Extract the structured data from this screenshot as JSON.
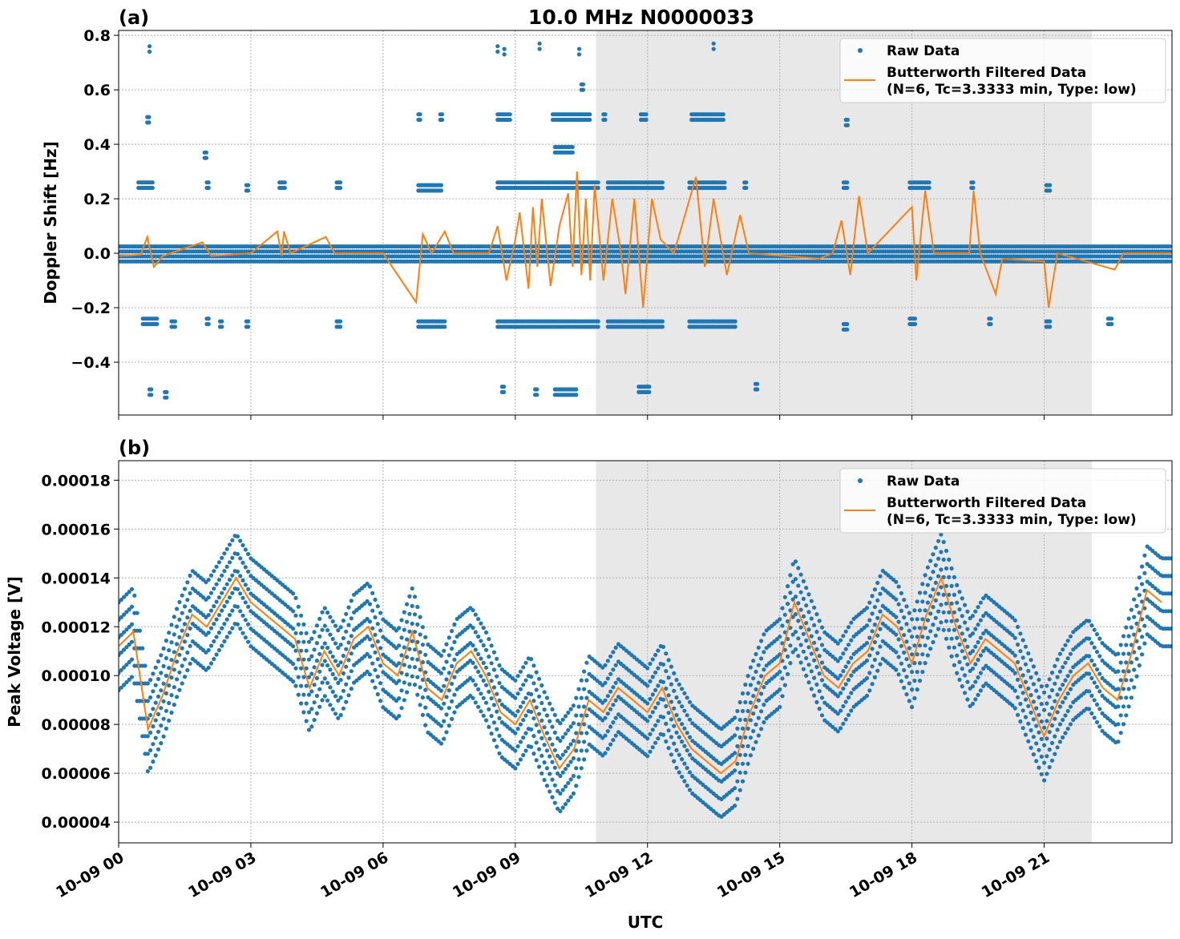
{
  "title": "10.0 MHz N0000033",
  "colors": {
    "raw": "#1f77b4",
    "filtered": "#ff7f0e",
    "shade": "#e8e8e8",
    "grid": "#b0b0b0"
  },
  "chart_data": [
    {
      "type": "scatter+line",
      "panel_label": "(a)",
      "ylabel": "Doppler Shift [Hz]",
      "xlabel": "",
      "x_unit": "hours UTC since 10-09 00:00",
      "xlim": [
        0,
        23.9
      ],
      "ylim": [
        -0.594,
        0.818
      ],
      "yticks": [
        -0.4,
        -0.2,
        0.0,
        0.2,
        0.4,
        0.6,
        0.8
      ],
      "ytick_labels": [
        "−0.4",
        "−0.2",
        "0.0",
        "0.2",
        "0.4",
        "0.6",
        "0.8"
      ],
      "grid": true,
      "shaded_interval": [
        10.83,
        22.08
      ],
      "legend": {
        "placement": "top-right",
        "entries": [
          "Raw Data",
          "Butterworth Filtered Data",
          "(N=6, Tc=3.3333 min, Type: low)"
        ]
      },
      "raw_band": [
        -0.03,
        0.025
      ],
      "raw_clusters": [
        [
          0.45,
          0.8,
          0.25
        ],
        [
          0.55,
          0.9,
          -0.25
        ],
        [
          1.2,
          1.3,
          -0.26
        ],
        [
          2.0,
          2.05,
          0.25
        ],
        [
          2.0,
          2.05,
          -0.25
        ],
        [
          2.3,
          2.35,
          -0.26
        ],
        [
          2.9,
          2.95,
          0.24
        ],
        [
          2.9,
          2.95,
          -0.26
        ],
        [
          3.65,
          3.8,
          0.25
        ],
        [
          4.95,
          5.05,
          0.25
        ],
        [
          4.95,
          5.05,
          -0.26
        ],
        [
          6.8,
          7.35,
          0.24
        ],
        [
          6.8,
          7.4,
          -0.26
        ],
        [
          8.6,
          10.9,
          0.25
        ],
        [
          8.6,
          10.9,
          -0.26
        ],
        [
          11.1,
          12.35,
          0.25
        ],
        [
          11.1,
          12.35,
          -0.26
        ],
        [
          12.95,
          13.75,
          0.25
        ],
        [
          12.95,
          14.0,
          -0.26
        ],
        [
          14.2,
          14.25,
          0.25
        ],
        [
          16.45,
          16.55,
          0.25
        ],
        [
          16.45,
          16.55,
          -0.27
        ],
        [
          17.95,
          18.4,
          0.25
        ],
        [
          17.95,
          18.1,
          -0.25
        ],
        [
          19.35,
          19.4,
          0.25
        ],
        [
          19.75,
          19.8,
          -0.25
        ],
        [
          21.05,
          21.15,
          0.24
        ],
        [
          21.05,
          21.15,
          -0.26
        ],
        [
          22.45,
          22.55,
          -0.25
        ],
        [
          0.65,
          0.7,
          0.49
        ],
        [
          6.8,
          6.85,
          0.5
        ],
        [
          7.3,
          7.35,
          0.5
        ],
        [
          8.6,
          8.9,
          0.5
        ],
        [
          9.85,
          10.7,
          0.5
        ],
        [
          11.0,
          11.05,
          0.5
        ],
        [
          11.85,
          12.0,
          0.5
        ],
        [
          13.0,
          13.75,
          0.5
        ],
        [
          16.5,
          16.55,
          0.48
        ],
        [
          0.7,
          0.75,
          -0.51
        ],
        [
          1.05,
          1.1,
          -0.52
        ],
        [
          8.7,
          8.75,
          -0.5
        ],
        [
          9.45,
          9.5,
          -0.51
        ],
        [
          9.9,
          10.4,
          -0.51
        ],
        [
          11.8,
          12.05,
          -0.5
        ],
        [
          14.45,
          14.5,
          -0.49
        ],
        [
          0.7,
          0.72,
          0.75
        ],
        [
          8.6,
          8.62,
          0.75
        ],
        [
          8.75,
          8.77,
          0.74
        ],
        [
          9.55,
          9.57,
          0.76
        ],
        [
          10.45,
          10.47,
          0.74
        ],
        [
          13.5,
          13.52,
          0.76
        ],
        [
          1.95,
          2.0,
          0.36
        ],
        [
          9.9,
          10.3,
          0.38
        ],
        [
          10.5,
          10.55,
          0.61
        ]
      ],
      "filtered": [
        [
          0,
          -0.01
        ],
        [
          0.5,
          -0.005
        ],
        [
          0.65,
          0.06
        ],
        [
          0.8,
          -0.05
        ],
        [
          1.0,
          -0.01
        ],
        [
          1.9,
          0.04
        ],
        [
          2.1,
          -0.01
        ],
        [
          3.0,
          0.0
        ],
        [
          3.6,
          0.08
        ],
        [
          3.7,
          -0.01
        ],
        [
          3.75,
          0.08
        ],
        [
          3.9,
          0.0
        ],
        [
          4.7,
          0.06
        ],
        [
          4.9,
          0.0
        ],
        [
          6.0,
          0.0
        ],
        [
          6.75,
          -0.18
        ],
        [
          6.9,
          0.07
        ],
        [
          7.1,
          0.0
        ],
        [
          7.4,
          0.08
        ],
        [
          7.6,
          0.0
        ],
        [
          8.4,
          0.0
        ],
        [
          8.6,
          0.1
        ],
        [
          8.8,
          -0.1
        ],
        [
          9.0,
          0.05
        ],
        [
          9.1,
          0.15
        ],
        [
          9.3,
          -0.13
        ],
        [
          9.4,
          0.17
        ],
        [
          9.5,
          -0.05
        ],
        [
          9.6,
          0.2
        ],
        [
          9.8,
          -0.12
        ],
        [
          10.0,
          0.1
        ],
        [
          10.2,
          0.22
        ],
        [
          10.3,
          -0.05
        ],
        [
          10.4,
          0.3
        ],
        [
          10.5,
          -0.08
        ],
        [
          10.6,
          0.2
        ],
        [
          10.7,
          -0.1
        ],
        [
          10.8,
          0.25
        ],
        [
          11.0,
          -0.1
        ],
        [
          11.2,
          0.2
        ],
        [
          11.4,
          0.0
        ],
        [
          11.5,
          -0.15
        ],
        [
          11.7,
          0.2
        ],
        [
          11.8,
          0.0
        ],
        [
          11.9,
          -0.2
        ],
        [
          12.1,
          0.2
        ],
        [
          12.3,
          0.05
        ],
        [
          12.6,
          0.0
        ],
        [
          13.1,
          0.28
        ],
        [
          13.3,
          -0.05
        ],
        [
          13.5,
          0.2
        ],
        [
          13.8,
          -0.08
        ],
        [
          14.1,
          0.14
        ],
        [
          14.3,
          0.0
        ],
        [
          15.9,
          -0.02
        ],
        [
          16.2,
          0.0
        ],
        [
          16.4,
          0.12
        ],
        [
          16.6,
          -0.08
        ],
        [
          16.8,
          0.21
        ],
        [
          17.0,
          0.0
        ],
        [
          18.0,
          0.17
        ],
        [
          18.1,
          -0.1
        ],
        [
          18.3,
          0.23
        ],
        [
          18.5,
          0.0
        ],
        [
          19.3,
          0.0
        ],
        [
          19.4,
          0.23
        ],
        [
          19.55,
          0.0
        ],
        [
          19.9,
          -0.15
        ],
        [
          20.05,
          -0.02
        ],
        [
          21.0,
          -0.03
        ],
        [
          21.1,
          -0.2
        ],
        [
          21.3,
          0.0
        ],
        [
          22.6,
          -0.06
        ],
        [
          22.8,
          0.0
        ],
        [
          23.9,
          0.0
        ]
      ]
    },
    {
      "type": "scatter+line",
      "panel_label": "(b)",
      "ylabel": "Peak Voltage [V]",
      "xlabel": "UTC",
      "xlim": [
        0,
        23.9
      ],
      "ylim": [
        3.15e-05,
        0.000188
      ],
      "yticks": [
        4e-05,
        6e-05,
        8e-05,
        0.0001,
        0.00012,
        0.00014,
        0.00016,
        0.00018
      ],
      "ytick_labels": [
        "0.00004",
        "0.00006",
        "0.00008",
        "0.00010",
        "0.00012",
        "0.00014",
        "0.00016",
        "0.00018"
      ],
      "xticks": [
        0,
        3,
        6,
        9,
        12,
        15,
        18,
        21
      ],
      "xtick_labels": [
        "10-09 00",
        "10-09 03",
        "10-09 06",
        "10-09 09",
        "10-09 12",
        "10-09 15",
        "10-09 18",
        "10-09 21"
      ],
      "grid": true,
      "shaded_interval": [
        10.83,
        22.08
      ],
      "legend": {
        "placement": "top-right",
        "entries": [
          "Raw Data",
          "Butterworth Filtered Data",
          "(N=6, Tc=3.3333 min, Type: low)"
        ]
      },
      "raw_spread": 1.8e-05,
      "filtered_step_hours": 0.3333,
      "filtered": [
        0.000112,
        0.000118,
        7.8e-05,
        9.2e-05,
        0.00011,
        0.000125,
        0.00012,
        0.00013,
        0.00014,
        0.00013,
        0.000125,
        0.00012,
        0.000115,
        9.5e-05,
        0.00011,
        0.0001,
        0.000115,
        0.00012,
        0.000105,
        0.0001,
        0.000118,
        9.5e-05,
        9e-05,
        0.000105,
        0.00011,
        0.0001,
        8.5e-05,
        8e-05,
        9e-05,
        7.5e-05,
        6.2e-05,
        7e-05,
        9e-05,
        8.5e-05,
        9.5e-05,
        9e-05,
        8.5e-05,
        9.5e-05,
        8e-05,
        7e-05,
        6.5e-05,
        6e-05,
        6.5e-05,
        8.5e-05,
        0.0001,
        0.000105,
        0.00013,
        0.000115,
        0.0001,
        9.5e-05,
        0.000105,
        0.00011,
        0.000125,
        0.00012,
        0.000105,
        0.000125,
        0.00014,
        0.00012,
        0.000105,
        0.000115,
        0.00011,
        0.000105,
        9e-05,
        7.5e-05,
        9e-05,
        0.0001,
        0.000105,
        9.5e-05,
        9e-05,
        0.00011,
        0.000135,
        0.00013
      ]
    }
  ]
}
